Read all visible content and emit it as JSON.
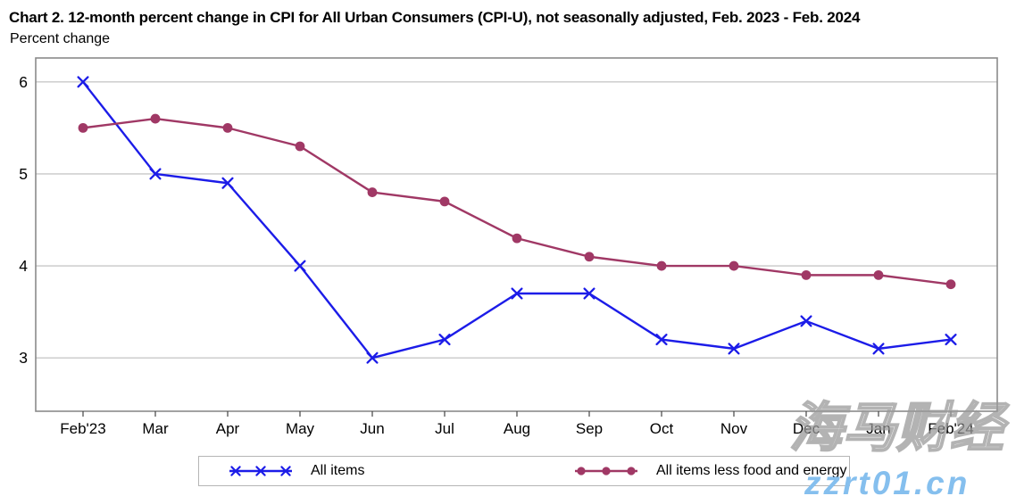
{
  "chart_data": {
    "type": "line",
    "title": "Chart 2. 12-month percent change in CPI for All Urban Consumers (CPI-U), not seasonally adjusted, Feb. 2023 - Feb. 2024",
    "ylabel": "Percent change",
    "xlabel": "",
    "categories": [
      "Feb'23",
      "Mar",
      "Apr",
      "May",
      "Jun",
      "Jul",
      "Aug",
      "Sep",
      "Oct",
      "Nov",
      "Dec",
      "Jan",
      "Feb'24"
    ],
    "series": [
      {
        "name": "All items",
        "marker": "x",
        "color": "#1c1ce8",
        "values": [
          6.0,
          5.0,
          4.9,
          4.0,
          3.0,
          3.2,
          3.7,
          3.7,
          3.2,
          3.1,
          3.4,
          3.1,
          3.2
        ]
      },
      {
        "name": "All items less food and energy",
        "marker": "circle",
        "color": "#a03865",
        "values": [
          5.5,
          5.6,
          5.5,
          5.3,
          4.8,
          4.7,
          4.3,
          4.1,
          4.0,
          4.0,
          3.9,
          3.9,
          3.8
        ]
      }
    ],
    "ylim": [
      2.42,
      6.26
    ],
    "yticks": [
      3,
      4,
      5,
      6
    ],
    "grid": true,
    "legend_position": "bottom"
  },
  "watermark": {
    "line1": "海马财经",
    "line2": "zzrt01.cn"
  },
  "colors": {
    "plot_border": "#8a8a8a",
    "gridline": "#c8c8c8",
    "all_items_blue": "#1c1ce8",
    "core_maroon": "#a03865",
    "watermark_gray": "#969696",
    "watermark_blue": "#85bfee"
  }
}
